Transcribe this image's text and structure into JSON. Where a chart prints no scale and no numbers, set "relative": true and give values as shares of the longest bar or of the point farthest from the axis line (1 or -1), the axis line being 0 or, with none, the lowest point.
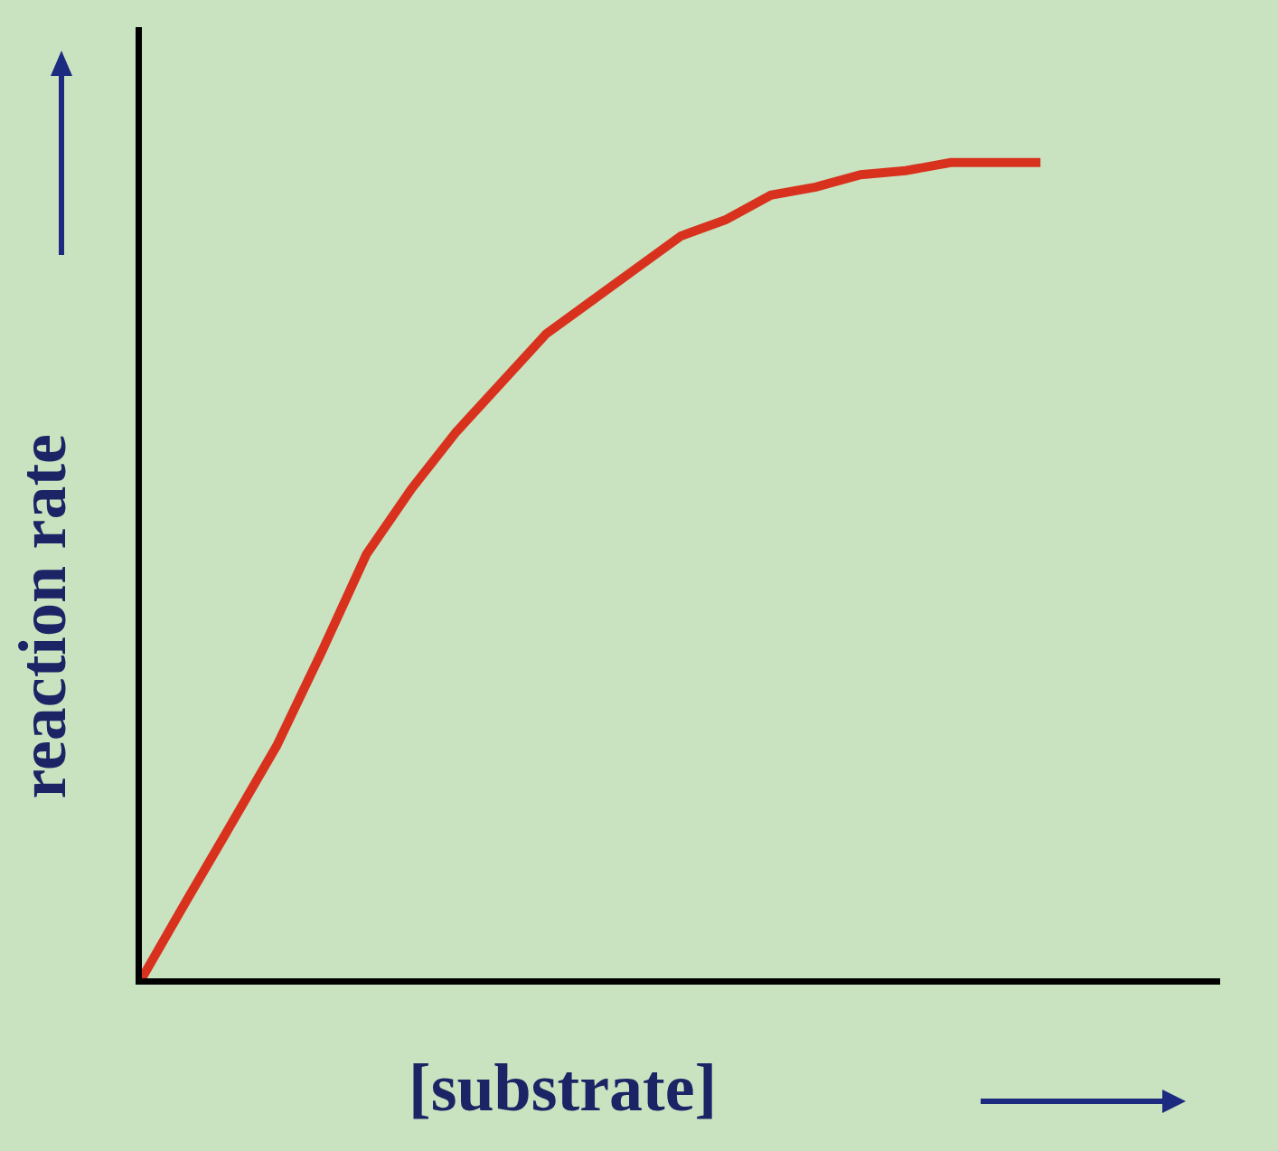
{
  "chart_data": {
    "type": "line",
    "relative": true,
    "xlabel": "[substrate]",
    "ylabel": "reaction rate",
    "categories": [
      null,
      null,
      null,
      null,
      null,
      null,
      null,
      null,
      null,
      null,
      null,
      null,
      null,
      null,
      null,
      null,
      null,
      null,
      null,
      null,
      null,
      null,
      null,
      null,
      null
    ],
    "series": [
      {
        "color": "#d8321e",
        "values": [
          0,
          0.096,
          0.19,
          0.285,
          0.4,
          0.52,
          0.6,
          0.67,
          0.73,
          0.79,
          0.83,
          0.87,
          0.91,
          0.93,
          0.96,
          0.97,
          0.985,
          0.99,
          1,
          1,
          1,
          null,
          null,
          null,
          null
        ]
      }
    ],
    "marker": "none",
    "line_style": "solid"
  }
}
